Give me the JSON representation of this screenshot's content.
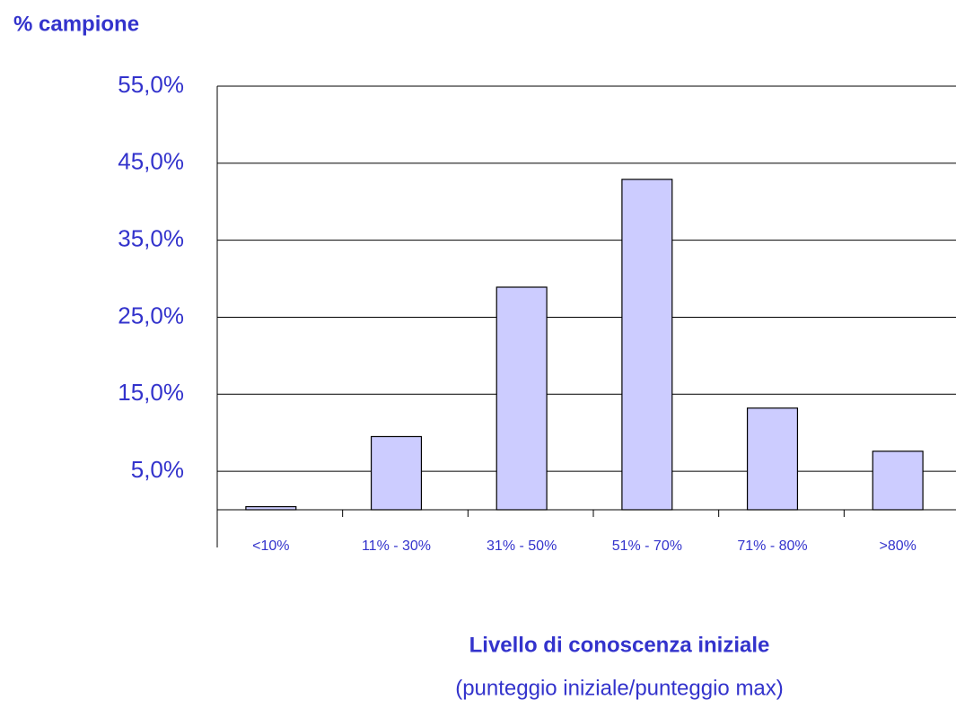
{
  "chart_data": {
    "type": "bar",
    "ylabel": "% campione",
    "xlabel": "Livello di conoscenza iniziale",
    "xlabel_note": "(punteggio iniziale/punteggio max)",
    "categories": [
      "<10%",
      "11% - 30%",
      "31% - 50%",
      "51% - 70%",
      "71% - 80%",
      ">80%"
    ],
    "values": [
      0.4,
      9.5,
      28.9,
      42.9,
      13.2,
      7.6
    ],
    "color": "#ccccff",
    "ylim": [
      0,
      55
    ],
    "yticks": [
      {
        "value": 5,
        "label": "5,0%"
      },
      {
        "value": 15,
        "label": "15,0%"
      },
      {
        "value": 25,
        "label": "25,0%"
      },
      {
        "value": 35,
        "label": "35,0%"
      },
      {
        "value": 45,
        "label": "45,0%"
      },
      {
        "value": 55,
        "label": "55,0%"
      }
    ],
    "grid": true
  }
}
